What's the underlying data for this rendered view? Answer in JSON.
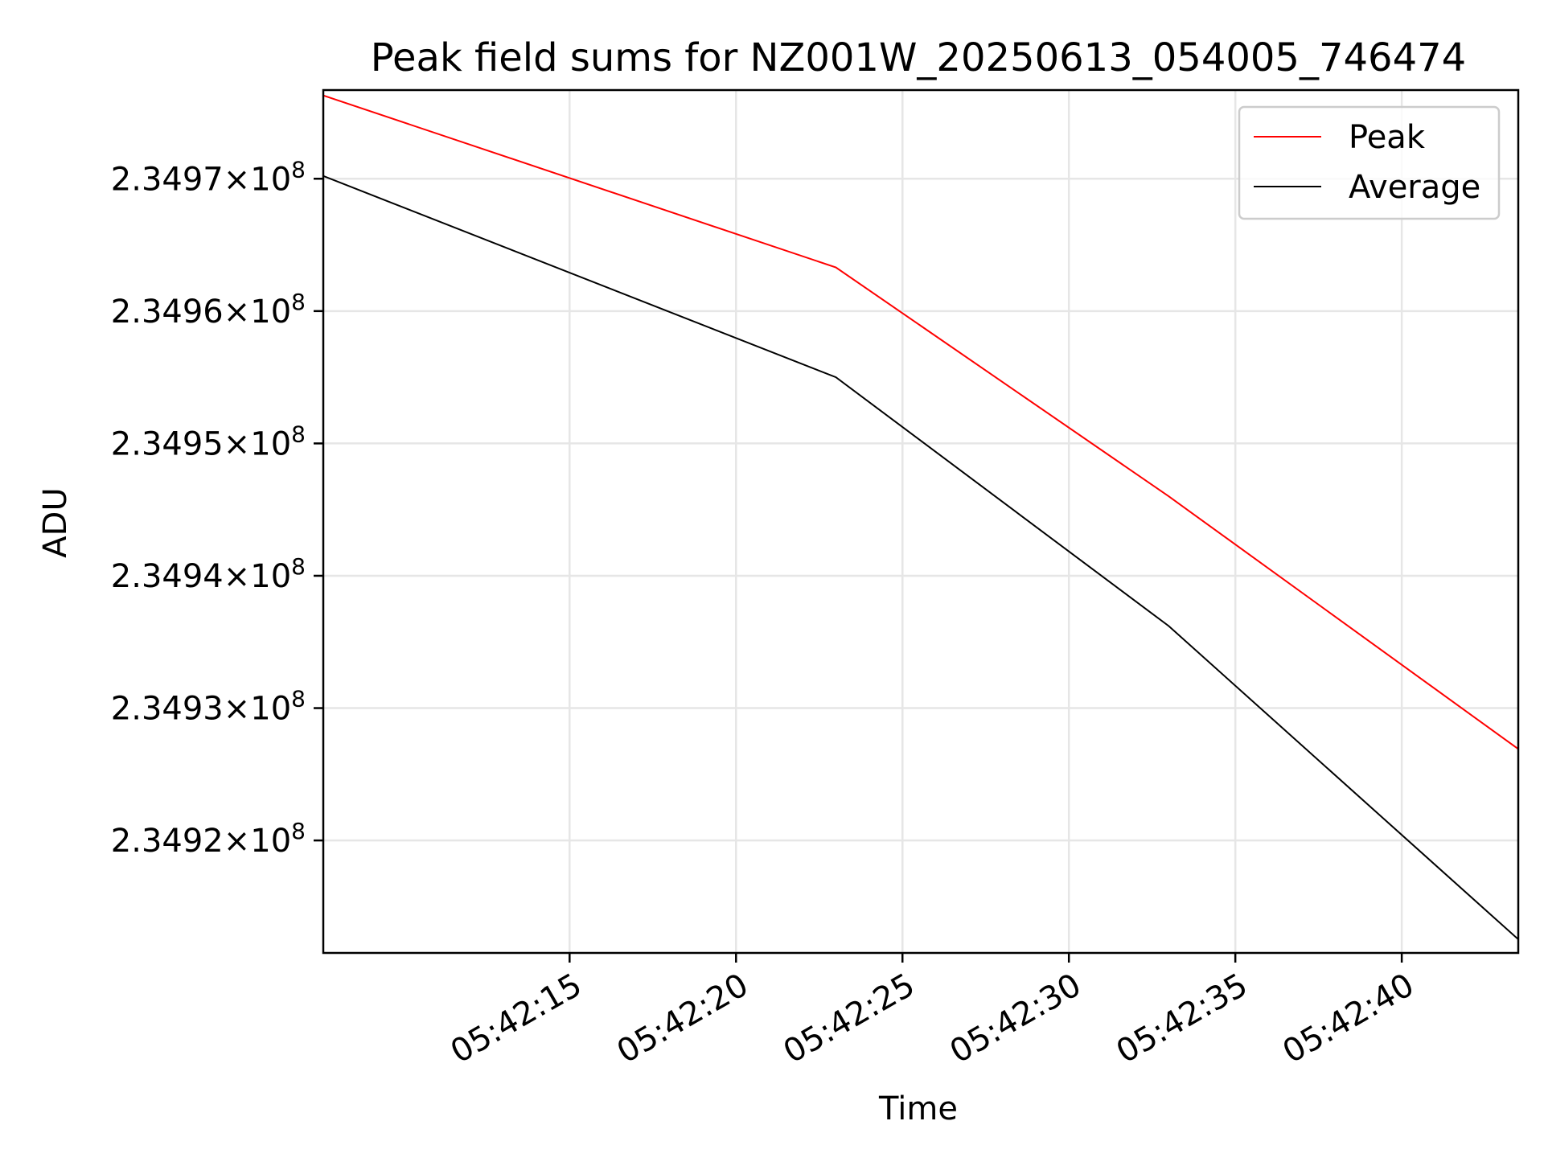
{
  "chart_data": {
    "type": "line",
    "title": "Peak field sums for NZ001W_20250613_054005_746474",
    "xlabel": "Time",
    "ylabel": "ADU",
    "x": [
      "05:42:07",
      "05:42:23",
      "05:42:33",
      "05:42:44"
    ],
    "xlim": [
      "05:42:07.6",
      "05:42:43.5"
    ],
    "ylim": [
      234911500,
      234976700
    ],
    "xticks": [
      "05:42:15",
      "05:42:20",
      "05:42:25",
      "05:42:30",
      "05:42:35",
      "05:42:40"
    ],
    "yticks": [
      {
        "value": 234920000,
        "mantissa": "2.3492",
        "exponent": "8"
      },
      {
        "value": 234930000,
        "mantissa": "2.3493",
        "exponent": "8"
      },
      {
        "value": 234940000,
        "mantissa": "2.3494",
        "exponent": "8"
      },
      {
        "value": 234950000,
        "mantissa": "2.3495",
        "exponent": "8"
      },
      {
        "value": 234960000,
        "mantissa": "2.3496",
        "exponent": "8"
      },
      {
        "value": 234970000,
        "mantissa": "2.3497",
        "exponent": "8"
      }
    ],
    "series": [
      {
        "name": "Peak",
        "color": "#ff0000",
        "values": [
          234976800,
          234963300,
          234946000,
          234926000
        ]
      },
      {
        "name": "Average",
        "color": "#000000",
        "values": [
          234970800,
          234955000,
          234936200,
          234911400
        ]
      }
    ],
    "grid": true,
    "legend_position": "top-right"
  }
}
